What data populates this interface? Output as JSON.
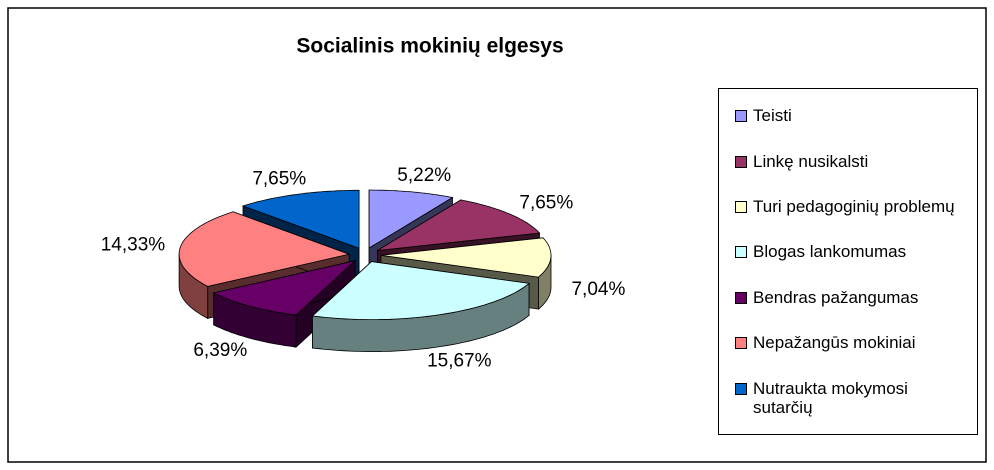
{
  "chart_data": {
    "type": "pie3d",
    "title": "Socialinis mokinių elgesys",
    "categories": [
      "Teisti",
      "Linkę nusikalsti",
      "Turi pedagoginių problemų",
      "Blogas lankomumas",
      "Bendras pažangumas",
      "Nepažangūs mokiniai",
      "Nutraukta mokymosi sutarčių"
    ],
    "values": [
      5.22,
      7.65,
      7.04,
      15.67,
      6.39,
      14.33,
      7.65
    ],
    "value_labels": [
      "5,22%",
      "7,65%",
      "7,04%",
      "15,67%",
      "6,39%",
      "14,33%",
      "7,65%"
    ],
    "colors": [
      "#9999ff",
      "#993366",
      "#ffffcc",
      "#ccffff",
      "#660066",
      "#ff8080",
      "#0066cc"
    ],
    "legend": "right"
  }
}
